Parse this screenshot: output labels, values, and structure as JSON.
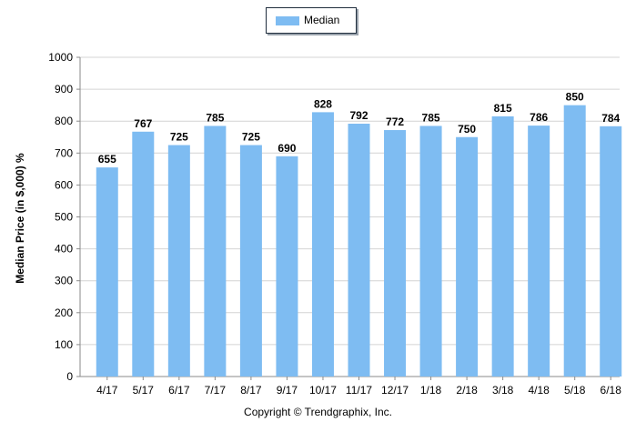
{
  "legend": {
    "label": "Median"
  },
  "ylabel_text": "Median Price (in $,000) %",
  "copyright": "Copyright © Trendgraphix, Inc.",
  "colors": {
    "bar": "#7ebcf2",
    "grid": "#d4d4d4",
    "axis": "#8a8a8a"
  },
  "chart_data": {
    "type": "bar",
    "categories": [
      "4/17",
      "5/17",
      "6/17",
      "7/17",
      "8/17",
      "9/17",
      "10/17",
      "11/17",
      "12/17",
      "1/18",
      "2/18",
      "3/18",
      "4/18",
      "5/18",
      "6/18"
    ],
    "series": [
      {
        "name": "Median",
        "values": [
          655,
          767,
          725,
          785,
          725,
          690,
          828,
          792,
          772,
          785,
          750,
          815,
          786,
          850,
          784
        ]
      }
    ],
    "ylabel": "Median Price (in $,000) %",
    "ylim": [
      0,
      1000
    ],
    "yticks": [
      0,
      100,
      200,
      300,
      400,
      500,
      600,
      700,
      800,
      900,
      1000
    ],
    "grid": true,
    "legend_position": "top-center",
    "data_labels": true
  }
}
